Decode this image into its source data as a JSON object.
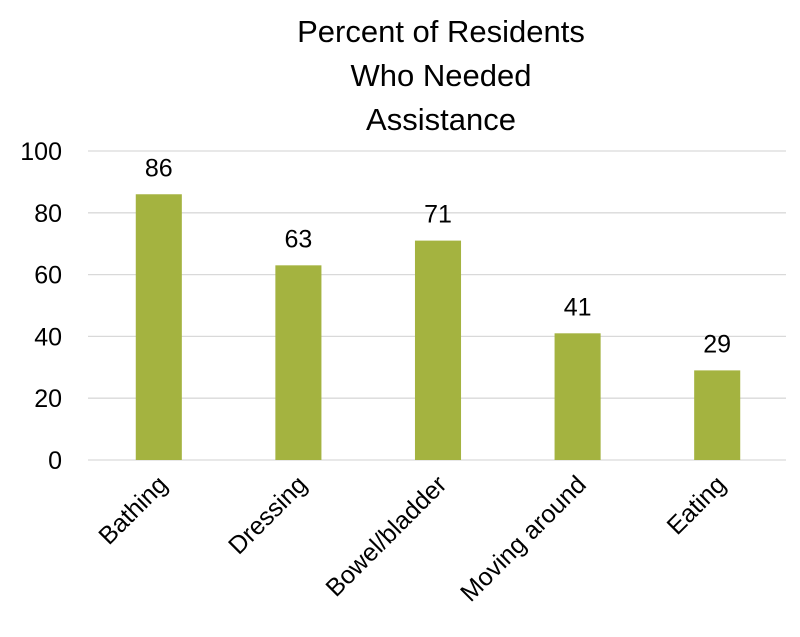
{
  "chart_data": {
    "type": "bar",
    "title_lines": [
      "Percent of Residents",
      "Who Needed",
      "Assistance"
    ],
    "categories": [
      "Bathing",
      "Dressing",
      "Bowel/bladder",
      "Moving around",
      "Eating"
    ],
    "values": [
      86,
      63,
      71,
      41,
      29
    ],
    "data_labels": [
      "86",
      "63",
      "71",
      "41",
      "29"
    ],
    "ylim": [
      0,
      100
    ],
    "yticks": [
      "0",
      "20",
      "40",
      "60",
      "80",
      "100"
    ],
    "grid": true,
    "legend": "none",
    "bar_color": "#a4b340",
    "xlabel": "",
    "ylabel": ""
  }
}
